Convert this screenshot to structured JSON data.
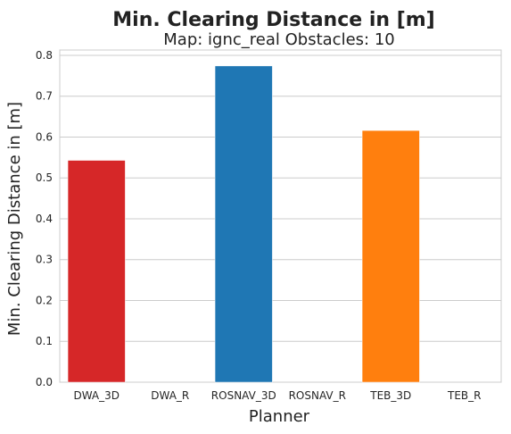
{
  "chart_data": {
    "type": "bar",
    "title": "Min. Clearing Distance in [m]",
    "subtitle": "Map: ignc_real Obstacles: 10",
    "xlabel": "Planner",
    "ylabel": "Min. Clearing Distance in [m]",
    "categories": [
      "DWA_3D",
      "DWA_R",
      "ROSNAV_3D",
      "ROSNAV_R",
      "TEB_3D",
      "TEB_R"
    ],
    "values": [
      0.543,
      null,
      0.774,
      null,
      0.616,
      null
    ],
    "colors": [
      "#d62728",
      "#d62728",
      "#1f77b4",
      "#1f77b4",
      "#ff7f0e",
      "#ff7f0e"
    ],
    "ylim": [
      0,
      0.813
    ],
    "yticks": [
      "0.0",
      "0.1",
      "0.2",
      "0.3",
      "0.4",
      "0.5",
      "0.6",
      "0.7",
      "0.8"
    ],
    "grid": true,
    "style": "whitegrid"
  }
}
